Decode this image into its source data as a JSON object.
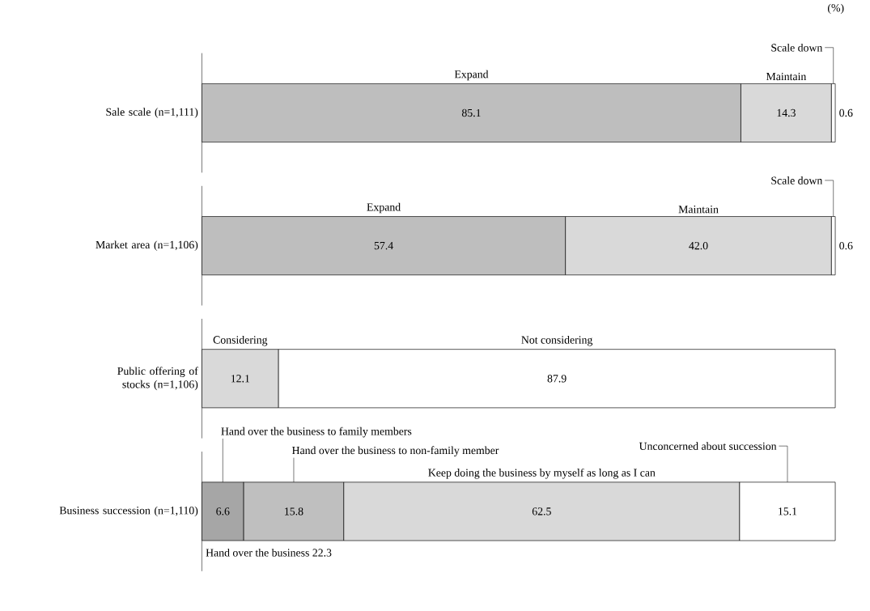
{
  "chart_data": {
    "type": "bar",
    "orientation": "horizontal",
    "stacked": true,
    "tick_labels": "y",
    "xlim": [
      0,
      100
    ],
    "categories": [
      "Sale scale (n=1,111)",
      "Market area (n=1,106)",
      "Public offering of stocks (n=1,106)",
      "Business succession (n=1,110)"
    ],
    "series": [
      {
        "name": "Expand",
        "color": "#bebebe",
        "values": [
          85.1,
          57.4,
          null,
          null
        ],
        "value_labels": [
          "85.1",
          "57.4",
          null,
          null
        ]
      },
      {
        "name": "Maintain",
        "color": "#d9d9d9",
        "values": [
          14.3,
          42.0,
          null,
          null
        ],
        "value_labels": [
          "14.3",
          "42.0",
          null,
          null
        ]
      },
      {
        "name": "Scale down",
        "color": "#ffffff",
        "values": [
          0.6,
          0.6,
          null,
          null
        ],
        "value_labels": [
          "0.6",
          "0.6",
          null,
          null
        ]
      },
      {
        "name": "Considering",
        "color": "#d9d9d9",
        "values": [
          null,
          null,
          12.1,
          null
        ],
        "value_labels": [
          null,
          null,
          "12.1",
          null
        ]
      },
      {
        "name": "Not considering",
        "color": "#ffffff",
        "values": [
          null,
          null,
          87.9,
          null
        ],
        "value_labels": [
          null,
          null,
          "87.9",
          null
        ]
      },
      {
        "name": "Hand over the business to family members",
        "color": "#a6a6a6",
        "values": [
          null,
          null,
          null,
          6.6
        ],
        "value_labels": [
          null,
          null,
          null,
          "6.6"
        ]
      },
      {
        "name": "Hand over the business to non-family member",
        "color": "#bfbfbf",
        "values": [
          null,
          null,
          null,
          15.8
        ],
        "value_labels": [
          null,
          null,
          null,
          "15.8"
        ]
      },
      {
        "name": "Keep doing the business by myself as long as I can",
        "color": "#d9d9d9",
        "values": [
          null,
          null,
          null,
          62.5
        ],
        "value_labels": [
          null,
          null,
          null,
          "62.5"
        ]
      },
      {
        "name": "Unconcerned about succession",
        "color": "#ffffff",
        "values": [
          null,
          null,
          null,
          15.1
        ],
        "value_labels": [
          null,
          null,
          null,
          "15.1"
        ]
      }
    ],
    "annotations": [
      "(%)",
      "Hand over the business 22.3"
    ]
  }
}
